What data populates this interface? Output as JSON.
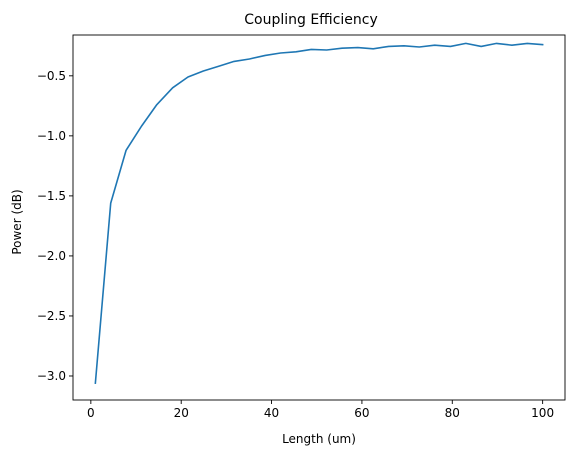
{
  "chart_data": {
    "type": "line",
    "title": "Coupling Efficiency",
    "xlabel": "Length (um)",
    "ylabel": "Power (dB)",
    "xlim": [
      -3.95,
      104.95
    ],
    "ylim": [
      -3.2,
      -0.16
    ],
    "x_ticks": [
      0,
      20,
      40,
      60,
      80,
      100
    ],
    "y_ticks": [
      -3.0,
      -2.5,
      -2.0,
      -1.5,
      -1.0,
      -0.5
    ],
    "x_tick_labels": [
      "0",
      "20",
      "40",
      "60",
      "80",
      "100"
    ],
    "y_tick_labels": [
      "−3.0",
      "−2.5",
      "−2.0",
      "−1.5",
      "−1.0",
      "−0.5"
    ],
    "grid": false,
    "legend": "none",
    "series": [
      {
        "color": "#1f77b4",
        "x": [
          1.0,
          4.4,
          7.8,
          11.2,
          14.6,
          18.1,
          21.5,
          24.9,
          28.3,
          31.7,
          35.1,
          38.6,
          42.0,
          45.4,
          48.8,
          52.2,
          55.6,
          59.1,
          62.5,
          65.9,
          69.3,
          72.7,
          76.1,
          79.6,
          83.0,
          86.4,
          89.8,
          93.2,
          96.6,
          100.0
        ],
        "y": [
          -3.06,
          -1.56,
          -1.12,
          -0.92,
          -0.74,
          -0.6,
          -0.51,
          -0.46,
          -0.42,
          -0.38,
          -0.36,
          -0.33,
          -0.31,
          -0.3,
          -0.28,
          -0.285,
          -0.27,
          -0.265,
          -0.275,
          -0.255,
          -0.25,
          -0.26,
          -0.245,
          -0.255,
          -0.23,
          -0.255,
          -0.23,
          -0.245,
          -0.23,
          -0.24
        ]
      }
    ]
  }
}
